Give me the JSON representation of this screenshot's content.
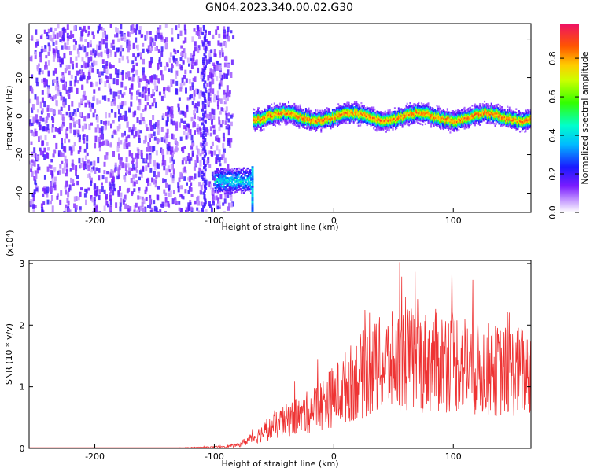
{
  "figure_title": "GN04.2023.340.00.02.G30",
  "chart_data": [
    {
      "type": "heatmap",
      "title": "GN04.2023.340.00.02.G30",
      "xlabel": "Height of straight line (km)",
      "ylabel": "Frequency (Hz)",
      "xlim": [
        -255,
        165
      ],
      "ylim": [
        -50,
        48
      ],
      "xticks": [
        "-200",
        "-100",
        "0",
        "100"
      ],
      "xtick_values": [
        -200,
        -100,
        0,
        100
      ],
      "yticks": [
        "40",
        "20",
        "0",
        "-20",
        "-40"
      ],
      "ytick_values": [
        40,
        20,
        0,
        -20,
        -40
      ],
      "colorbar": {
        "label": "Normalized spectral amplitude",
        "range": [
          0.0,
          0.98
        ],
        "ticks": [
          "0.0",
          "0.2",
          "0.4",
          "0.6",
          "0.8"
        ],
        "tick_values": [
          0.0,
          0.2,
          0.4,
          0.6,
          0.8
        ],
        "colormap": "rainbow"
      },
      "regions": [
        {
          "name": "noise",
          "x_range": [
            -255,
            -100
          ],
          "freq_range": [
            -50,
            48
          ],
          "amplitude": 0.15
        },
        {
          "name": "early-tone",
          "x_range": [
            -100,
            -70
          ],
          "freq_center": -33,
          "amplitude": 0.35
        },
        {
          "name": "main-tone",
          "x_range": [
            -68,
            165
          ],
          "freq_center": 0,
          "amplitude": 0.85
        }
      ],
      "grid": false
    },
    {
      "type": "line",
      "xlabel": "Height of straight line (km)",
      "ylabel": "SNR (10 * v/v)",
      "y_multiplier_label": "(x10⁴)",
      "xlim": [
        -255,
        165
      ],
      "ylim": [
        0,
        3.05
      ],
      "xticks": [
        "-200",
        "-100",
        "0",
        "100"
      ],
      "xtick_values": [
        -200,
        -100,
        0,
        100
      ],
      "yticks": [
        "0",
        "1",
        "2",
        "3"
      ],
      "ytick_values": [
        0,
        1,
        2,
        3
      ],
      "color": "#ee3333",
      "x": [
        -255,
        -200,
        -150,
        -100,
        -80,
        -60,
        -40,
        -20,
        0,
        20,
        40,
        60,
        80,
        100,
        120,
        140,
        165
      ],
      "values": [
        0.0,
        0.0,
        0.0,
        0.02,
        0.05,
        0.25,
        0.45,
        0.6,
        0.85,
        1.15,
        1.35,
        1.45,
        1.4,
        1.45,
        1.3,
        1.25,
        1.25
      ],
      "peaks": [
        {
          "x": 55,
          "y": 3.02
        },
        {
          "x": 30,
          "y": 2.2
        },
        {
          "x": 60,
          "y": 2.45
        }
      ],
      "grid": false
    }
  ]
}
